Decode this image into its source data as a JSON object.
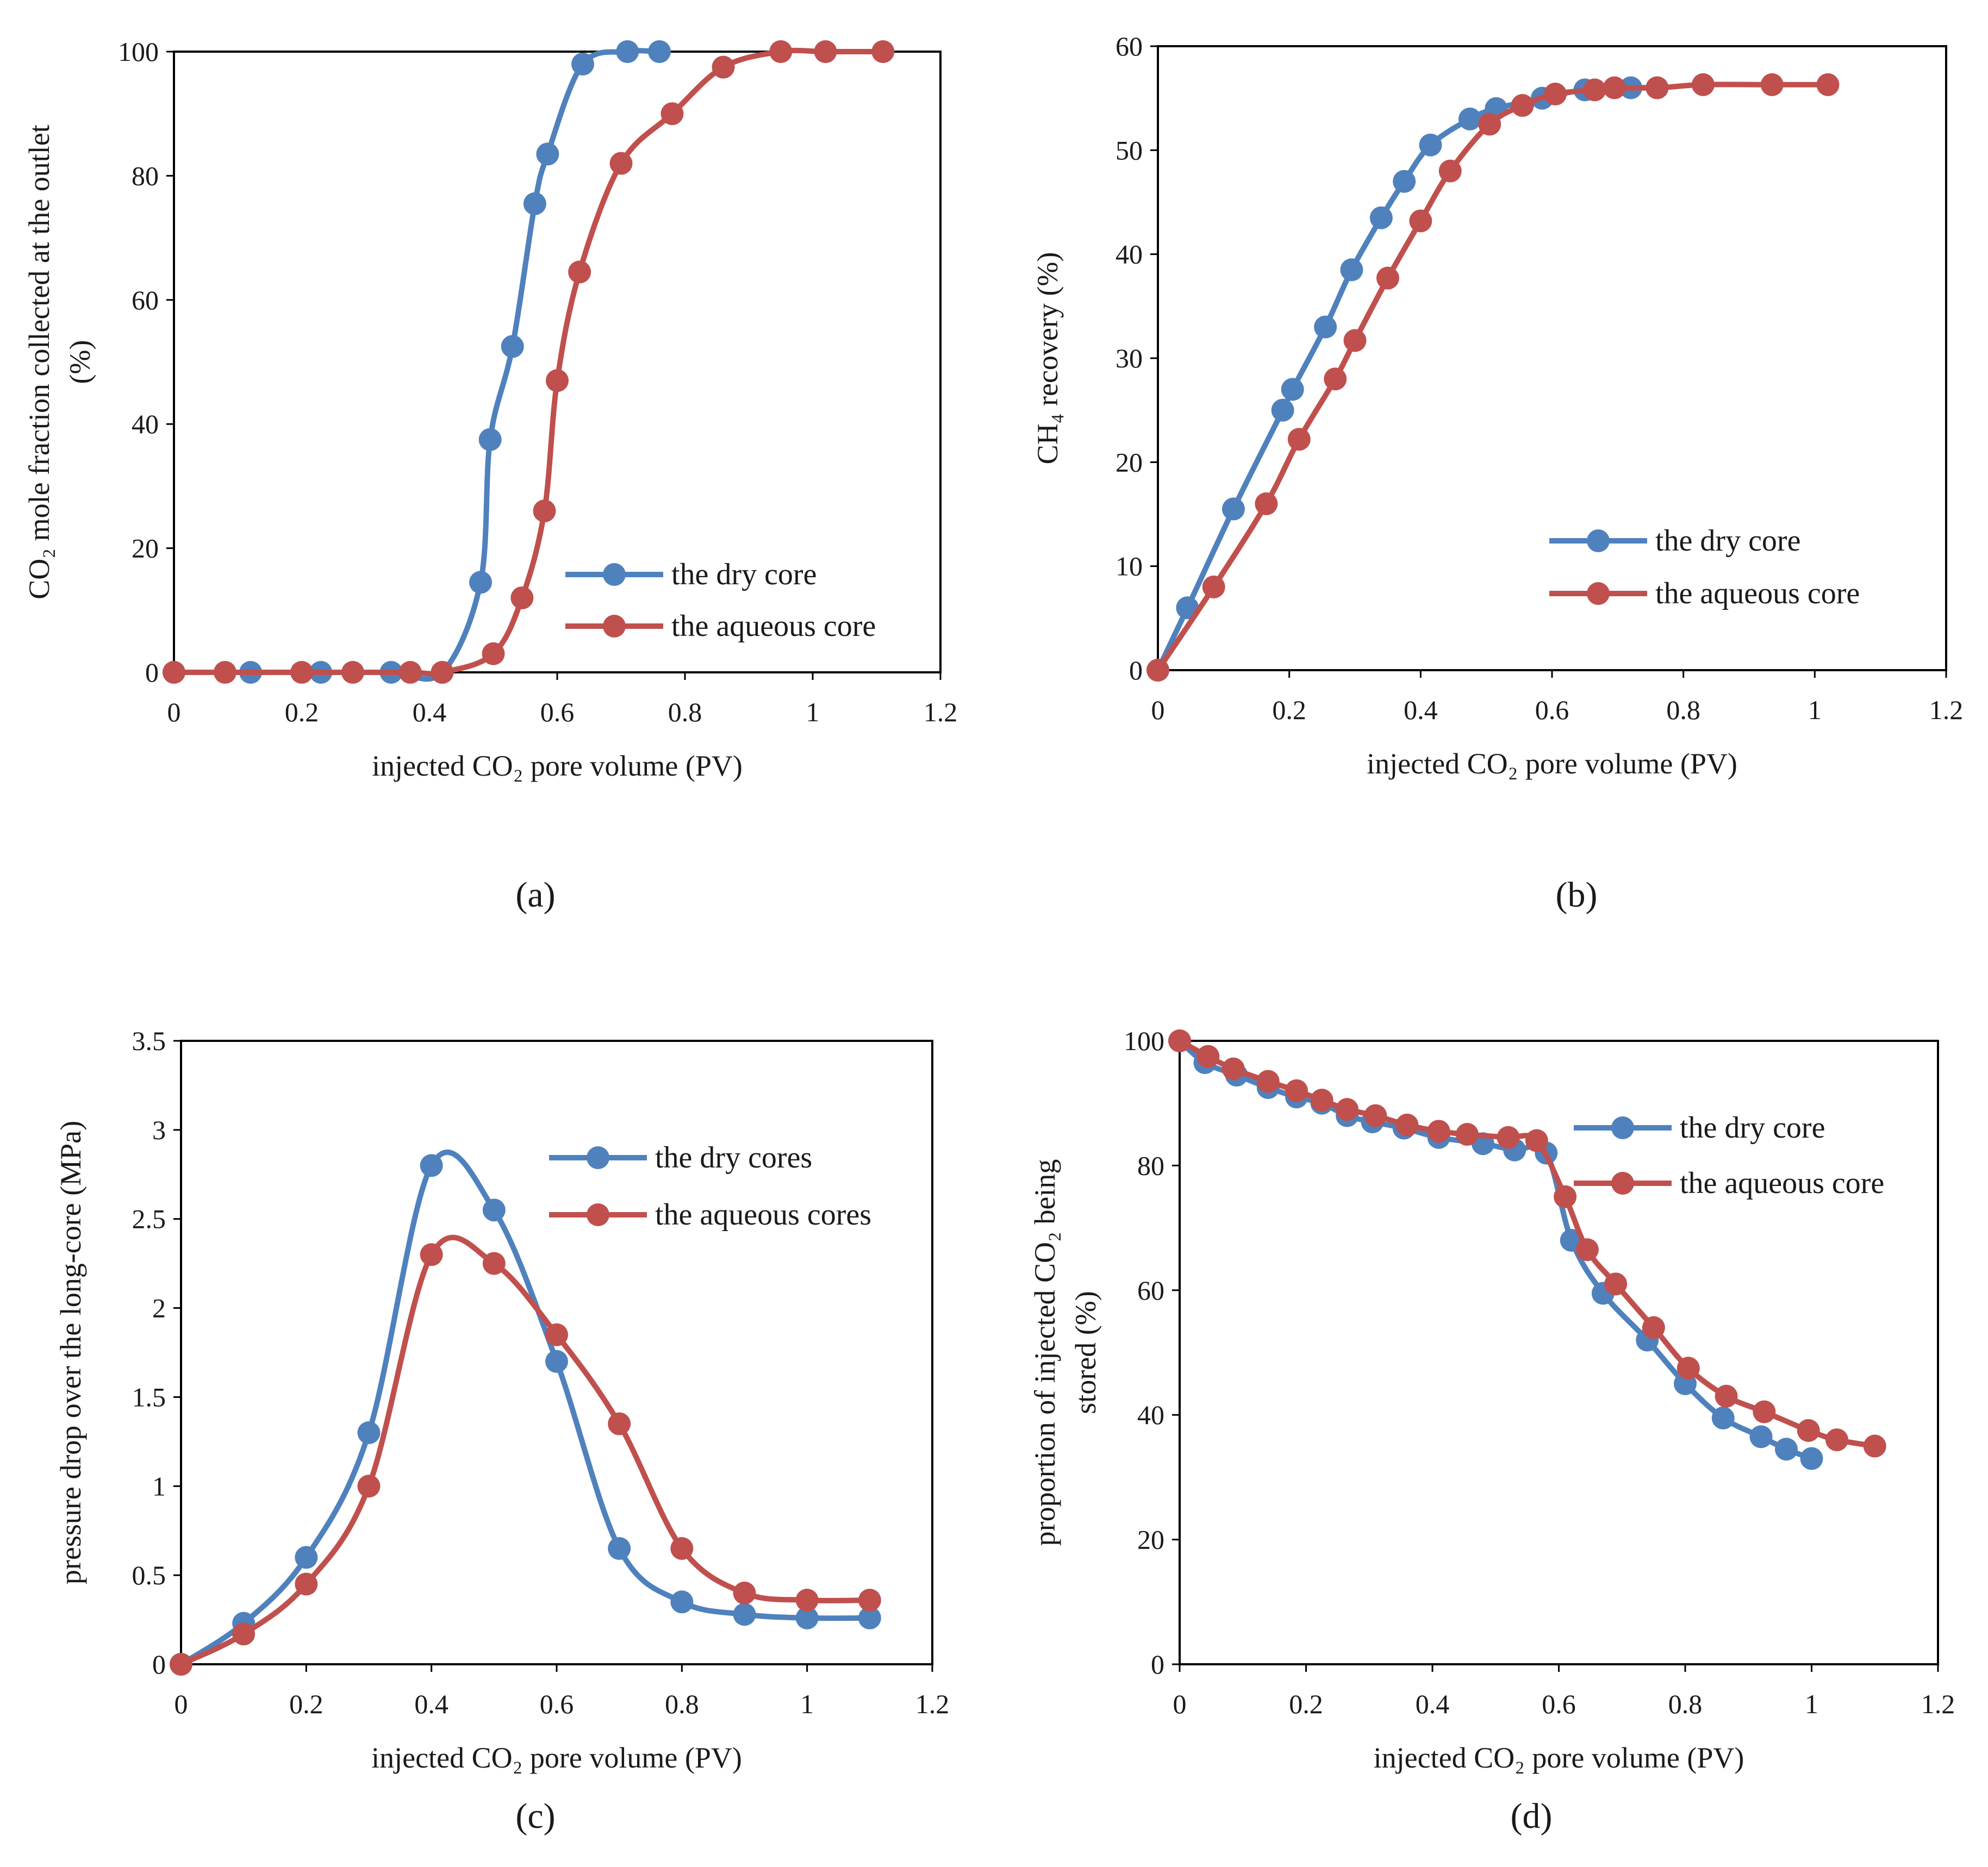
{
  "colors": {
    "dry": "#4f81bd",
    "aqueous": "#c0504d",
    "axis": "#000000"
  },
  "chart_data": [
    {
      "type": "line",
      "panel_label": "(a)",
      "xlabel": "injected CO₂ pore volume (PV)",
      "ylabel_line1": "CO₂ mole fraction collected at the outlet",
      "ylabel_line2": "(%)",
      "xlim": [
        0,
        1.2
      ],
      "ylim": [
        0,
        100
      ],
      "xticks": [
        0,
        0.2,
        0.4,
        0.6,
        0.8,
        1,
        1.2
      ],
      "xtick_labels": [
        "0",
        "0.2",
        "0.4",
        "0.6",
        "0.8",
        "1",
        "1.2"
      ],
      "yticks": [
        0,
        20,
        40,
        60,
        80,
        100
      ],
      "ytick_labels": [
        "0",
        "20",
        "40",
        "60",
        "80",
        "100"
      ],
      "legend_position": "lower-right",
      "series": [
        {
          "name": "the dry core",
          "color": "#4f81bd",
          "x": [
            0,
            0.12,
            0.23,
            0.34,
            0.42,
            0.48,
            0.495,
            0.53,
            0.565,
            0.585,
            0.64,
            0.71,
            0.76
          ],
          "y": [
            0,
            0,
            0,
            0,
            0,
            14.5,
            37.5,
            52.5,
            75.5,
            83.5,
            98,
            100,
            100
          ]
        },
        {
          "name": "the aqueous core",
          "color": "#c0504d",
          "x": [
            0,
            0.08,
            0.2,
            0.28,
            0.37,
            0.42,
            0.5,
            0.545,
            0.58,
            0.6,
            0.635,
            0.7,
            0.78,
            0.86,
            0.95,
            1.02,
            1.11
          ],
          "y": [
            0,
            0,
            0,
            0,
            0,
            0,
            3,
            12,
            26,
            47,
            64.5,
            82,
            90,
            97.5,
            100,
            100,
            100
          ]
        }
      ]
    },
    {
      "type": "line",
      "panel_label": "(b)",
      "xlabel": "injected CO₂ pore volume (PV)",
      "ylabel_line1": "CH₄ recovery (%)",
      "ylabel_line2": "",
      "xlim": [
        0,
        1.2
      ],
      "ylim": [
        0,
        60
      ],
      "xticks": [
        0,
        0.2,
        0.4,
        0.6,
        0.8,
        1,
        1.2
      ],
      "xtick_labels": [
        "0",
        "0.2",
        "0.4",
        "0.6",
        "0.8",
        "1",
        "1.2"
      ],
      "yticks": [
        0,
        10,
        20,
        30,
        40,
        50,
        60
      ],
      "ytick_labels": [
        "0",
        "10",
        "20",
        "30",
        "40",
        "50",
        "60"
      ],
      "legend_position": "lower-right",
      "series": [
        {
          "name": "the dry core",
          "color": "#4f81bd",
          "x": [
            0,
            0.045,
            0.115,
            0.19,
            0.205,
            0.255,
            0.295,
            0.34,
            0.375,
            0.415,
            0.475,
            0.515,
            0.585,
            0.65,
            0.72,
            0.76
          ],
          "y": [
            0,
            6,
            15.5,
            25,
            27,
            33,
            38.5,
            43.5,
            47,
            50.5,
            53,
            54,
            55,
            55.8,
            56,
            56
          ]
        },
        {
          "name": "the aqueous core",
          "color": "#c0504d",
          "x": [
            0,
            0.085,
            0.165,
            0.215,
            0.27,
            0.3,
            0.35,
            0.4,
            0.445,
            0.505,
            0.555,
            0.605,
            0.665,
            0.695,
            0.76,
            0.83,
            0.935,
            1.02
          ],
          "y": [
            0,
            8,
            16,
            22.2,
            28,
            31.7,
            37.7,
            43.2,
            48,
            52.5,
            54.3,
            55.4,
            55.8,
            56,
            56,
            56.3,
            56.3,
            56.3
          ]
        }
      ]
    },
    {
      "type": "line",
      "panel_label": "(c)",
      "xlabel": "injected CO₂ pore volume  (PV)",
      "ylabel_line1": "pressure  drop over the long-core (MPa)",
      "ylabel_line2": "",
      "xlim": [
        0,
        1.2
      ],
      "ylim": [
        0,
        3.5
      ],
      "xticks": [
        0,
        0.2,
        0.4,
        0.6,
        0.8,
        1,
        1.2
      ],
      "xtick_labels": [
        "0",
        "0.2",
        "0.4",
        "0.6",
        "0.8",
        "1",
        "1.2"
      ],
      "yticks": [
        0,
        0.5,
        1,
        1.5,
        2,
        2.5,
        3,
        3.5
      ],
      "ytick_labels": [
        "0",
        "0.5",
        "1",
        "1.5",
        "2",
        "2.5",
        "3",
        "3.5"
      ],
      "legend_position": "upper-right",
      "series": [
        {
          "name": "the dry cores",
          "color": "#4f81bd",
          "x": [
            0,
            0.1,
            0.2,
            0.3,
            0.4,
            0.5,
            0.6,
            0.7,
            0.8,
            0.9,
            1,
            1.1
          ],
          "y": [
            0,
            0.23,
            0.6,
            1.3,
            2.8,
            2.55,
            1.7,
            0.65,
            0.35,
            0.28,
            0.26,
            0.26
          ]
        },
        {
          "name": "the aqueous cores",
          "color": "#c0504d",
          "x": [
            0,
            0.1,
            0.2,
            0.3,
            0.4,
            0.5,
            0.6,
            0.7,
            0.8,
            0.9,
            1,
            1.1
          ],
          "y": [
            0,
            0.17,
            0.45,
            1.0,
            2.3,
            2.25,
            1.85,
            1.35,
            0.65,
            0.4,
            0.36,
            0.36
          ]
        }
      ]
    },
    {
      "type": "line",
      "panel_label": "(d)",
      "xlabel": "injected CO₂ pore volume (PV)",
      "ylabel_line1": "proportion of injected CO₂ being",
      "ylabel_line2": "stored (%)",
      "xlim": [
        0,
        1.2
      ],
      "ylim": [
        0,
        100
      ],
      "xticks": [
        0,
        0.2,
        0.4,
        0.6,
        0.8,
        1,
        1.2
      ],
      "xtick_labels": [
        "0",
        "0.2",
        "0.4",
        "0.6",
        "0.8",
        "1",
        "1.2"
      ],
      "yticks": [
        0,
        20,
        40,
        60,
        80,
        100
      ],
      "ytick_labels": [
        "0",
        "20",
        "40",
        "60",
        "80",
        "100"
      ],
      "legend_position": "upper-right",
      "series": [
        {
          "name": "the dry core",
          "color": "#4f81bd",
          "x": [
            0,
            0.04,
            0.09,
            0.14,
            0.185,
            0.225,
            0.265,
            0.305,
            0.355,
            0.41,
            0.48,
            0.53,
            0.58,
            0.62,
            0.67,
            0.74,
            0.8,
            0.86,
            0.92,
            0.96,
            1.0
          ],
          "y": [
            100,
            96.5,
            94.5,
            92.5,
            91,
            90,
            88,
            87,
            86,
            84.5,
            83.5,
            82.5,
            82,
            68,
            59.5,
            52,
            45,
            39.5,
            36.5,
            34.5,
            33
          ]
        },
        {
          "name": "the aqueous core",
          "color": "#c0504d",
          "x": [
            0,
            0.045,
            0.085,
            0.14,
            0.185,
            0.225,
            0.265,
            0.31,
            0.36,
            0.41,
            0.455,
            0.52,
            0.565,
            0.61,
            0.645,
            0.69,
            0.75,
            0.805,
            0.865,
            0.925,
            0.995,
            1.04,
            1.1
          ],
          "y": [
            100,
            97.5,
            95.5,
            93.5,
            92,
            90.5,
            89,
            88,
            86.5,
            85.5,
            85,
            84.5,
            84,
            75,
            66.5,
            61,
            54,
            47.5,
            43,
            40.5,
            37.5,
            36,
            35
          ]
        }
      ]
    }
  ]
}
